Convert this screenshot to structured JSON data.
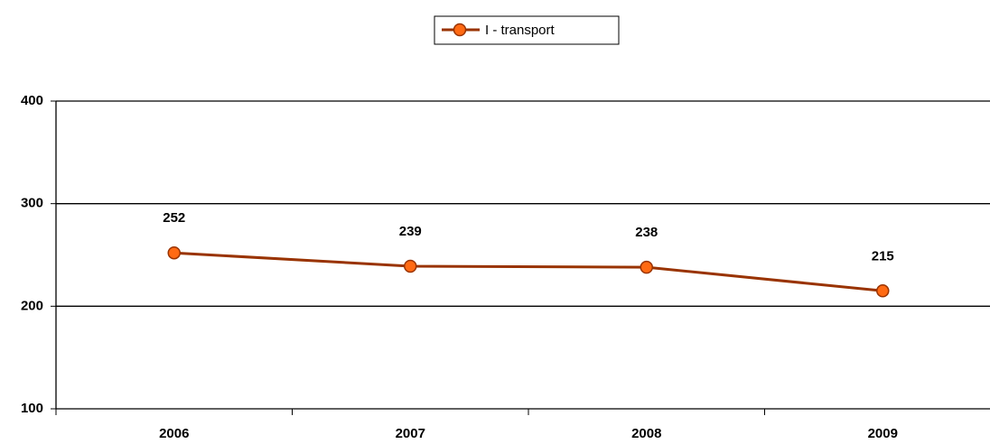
{
  "chart_data": {
    "type": "line",
    "categories": [
      "2006",
      "2007",
      "2008",
      "2009"
    ],
    "series": [
      {
        "name": "I - transport",
        "color": "#993300",
        "marker_color": "#ff6a13",
        "values": [
          252,
          239,
          238,
          215
        ]
      }
    ],
    "ylim": [
      100,
      400
    ],
    "yticks": [
      100,
      200,
      300,
      400
    ],
    "grid": true,
    "legend": "top"
  }
}
